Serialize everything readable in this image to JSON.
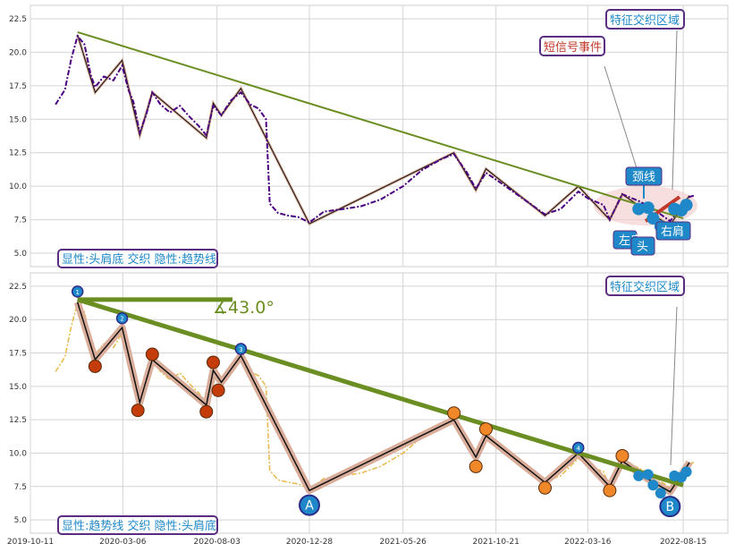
{
  "chart_data": [
    {
      "type": "line",
      "panel": "top",
      "ylim": [
        4,
        23.5
      ],
      "yticks": [
        "5.0",
        "7.5",
        "10.0",
        "12.5",
        "15.0",
        "17.5",
        "20.0",
        "22.5"
      ],
      "grid": true,
      "price_series": [
        [
          "2019-11-20",
          16.1
        ],
        [
          "2019-12-05",
          17.2
        ],
        [
          "2019-12-15",
          19.5
        ],
        [
          "2019-12-25",
          21.2
        ],
        [
          "2020-01-05",
          20.6
        ],
        [
          "2020-01-15",
          18.3
        ],
        [
          "2020-01-22",
          17.4
        ],
        [
          "2020-02-05",
          18.2
        ],
        [
          "2020-02-20",
          17.9
        ],
        [
          "2020-03-05",
          19.0
        ],
        [
          "2020-03-15",
          17.2
        ],
        [
          "2020-03-23",
          16.3
        ],
        [
          "2020-04-02",
          14.0
        ],
        [
          "2020-04-12",
          15.3
        ],
        [
          "2020-04-22",
          17.0
        ],
        [
          "2020-05-05",
          16.1
        ],
        [
          "2020-05-20",
          15.5
        ],
        [
          "2020-06-05",
          16.0
        ],
        [
          "2020-06-20",
          15.2
        ],
        [
          "2020-07-05",
          14.5
        ],
        [
          "2020-07-17",
          13.8
        ],
        [
          "2020-07-28",
          16.0
        ],
        [
          "2020-08-10",
          15.3
        ],
        [
          "2020-08-25",
          16.4
        ],
        [
          "2020-09-10",
          17.0
        ],
        [
          "2020-09-25",
          16.1
        ],
        [
          "2020-10-08",
          15.8
        ],
        [
          "2020-10-20",
          15.0
        ],
        [
          "2020-10-26",
          8.7
        ],
        [
          "2020-11-08",
          8.0
        ],
        [
          "2020-11-25",
          7.8
        ],
        [
          "2020-12-10",
          7.7
        ],
        [
          "2020-12-28",
          7.3
        ],
        [
          "2021-01-20",
          8.1
        ],
        [
          "2021-02-20",
          8.3
        ],
        [
          "2021-03-20",
          8.5
        ],
        [
          "2021-04-20",
          9.0
        ],
        [
          "2021-05-26",
          10.0
        ],
        [
          "2021-06-25",
          11.2
        ],
        [
          "2021-07-25",
          12.0
        ],
        [
          "2021-08-15",
          12.4
        ],
        [
          "2021-09-05",
          11.0
        ],
        [
          "2021-09-19",
          9.8
        ],
        [
          "2021-10-05",
          11.0
        ],
        [
          "2021-10-21",
          10.5
        ],
        [
          "2021-11-20",
          9.5
        ],
        [
          "2021-12-20",
          8.5
        ],
        [
          "2022-01-07",
          7.9
        ],
        [
          "2022-02-01",
          8.3
        ],
        [
          "2022-03-01",
          9.6
        ],
        [
          "2022-03-16",
          9.1
        ],
        [
          "2022-04-10",
          8.6
        ],
        [
          "2022-04-20",
          7.5
        ],
        [
          "2022-05-10",
          9.4
        ],
        [
          "2022-06-05",
          8.9
        ],
        [
          "2022-06-25",
          8.4
        ],
        [
          "2022-07-10",
          7.9
        ],
        [
          "2022-07-25",
          7.4
        ],
        [
          "2022-08-15",
          8.6
        ],
        [
          "2022-08-25",
          9.2
        ],
        [
          "2022-09-01",
          9.3
        ]
      ],
      "zigzag": [
        [
          "2019-12-25",
          21.3
        ],
        [
          "2020-01-22",
          17.0
        ],
        [
          "2020-03-05",
          19.4
        ],
        [
          "2020-04-02",
          13.8
        ],
        [
          "2020-04-22",
          17.0
        ],
        [
          "2020-07-17",
          13.6
        ],
        [
          "2020-07-28",
          16.2
        ],
        [
          "2020-08-10",
          15.3
        ],
        [
          "2020-09-10",
          17.3
        ],
        [
          "2020-12-28",
          7.2
        ],
        [
          "2021-08-15",
          12.5
        ],
        [
          "2021-09-19",
          9.7
        ],
        [
          "2021-10-05",
          11.3
        ],
        [
          "2022-01-07",
          7.8
        ],
        [
          "2022-03-01",
          10.0
        ],
        [
          "2022-04-20",
          7.5
        ],
        [
          "2022-05-10",
          9.4
        ],
        [
          "2022-06-25",
          7.9
        ],
        [
          "2022-07-25",
          7.1
        ],
        [
          "2022-08-25",
          9.3
        ]
      ],
      "trendline": [
        [
          "2019-12-25",
          21.5
        ],
        [
          "2022-08-15",
          7.6
        ]
      ],
      "hs_pattern_markers": [
        [
          "2022-06-05",
          8.3
        ],
        [
          "2022-06-20",
          8.4
        ],
        [
          "2022-06-28",
          7.6
        ],
        [
          "2022-07-10",
          7.0
        ],
        [
          "2022-08-01",
          8.3
        ],
        [
          "2022-08-12",
          8.2
        ],
        [
          "2022-08-20",
          8.6
        ]
      ],
      "annotations": {
        "bottom_label": "显性:头肩底 交织 隐性:趋势线",
        "intersect_zone": "特征交织区域",
        "short_signal": "短信号事件",
        "neckline": "颈线",
        "left_shoulder": "左肩",
        "head": "头",
        "right_shoulder": "右肩"
      }
    },
    {
      "type": "line",
      "panel": "bottom",
      "ylim": [
        4,
        23.5
      ],
      "yticks": [
        "5.0",
        "7.5",
        "10.0",
        "12.5",
        "15.0",
        "17.5",
        "20.0",
        "22.5"
      ],
      "xticks": [
        "2019-10-11",
        "2020-03-06",
        "2020-08-03",
        "2020-12-28",
        "2021-05-26",
        "2021-10-21",
        "2022-03-16",
        "2022-08-15"
      ],
      "grid": true,
      "angle_label": "∡43.0°",
      "numbered_points": [
        {
          "label": "1",
          "date": "2019-12-25",
          "value": 22.1
        },
        {
          "label": "2",
          "date": "2020-03-05",
          "value": 20.1
        },
        {
          "label": "3",
          "date": "2020-09-10",
          "value": 17.8
        },
        {
          "label": "4",
          "date": "2022-03-01",
          "value": 10.4
        }
      ],
      "pivot_markers": [
        [
          "2020-01-22",
          16.5
        ],
        [
          "2020-03-30",
          13.2
        ],
        [
          "2020-04-22",
          17.4
        ],
        [
          "2020-07-17",
          13.1
        ],
        [
          "2020-07-28",
          16.8
        ],
        [
          "2020-08-05",
          14.7
        ],
        [
          "2021-08-15",
          13.0
        ],
        [
          "2021-09-19",
          9.0
        ],
        [
          "2021-10-05",
          11.8
        ],
        [
          "2022-01-07",
          7.4
        ],
        [
          "2022-04-20",
          7.2
        ],
        [
          "2022-05-10",
          9.8
        ]
      ],
      "zone_labels": {
        "A": "A",
        "B": "B"
      },
      "annotations": {
        "bottom_label": "显性:趋势线 交织 隐性:头肩底",
        "intersect_zone": "特征交织区域"
      }
    }
  ],
  "colors": {
    "price_dark": "#4b0082",
    "price_gold": "#e8b84a",
    "zigzag_line": "#111111",
    "zigzag_band": "#d9ad9a",
    "trend": "#6b8e23",
    "marker_blue": "#1e88c8",
    "marker_red": "#c43c0a",
    "marker_orange": "#f0882a",
    "box_border": "#5a2d82",
    "box_text": "#1e88c8",
    "alert_text": "#c0392b"
  }
}
